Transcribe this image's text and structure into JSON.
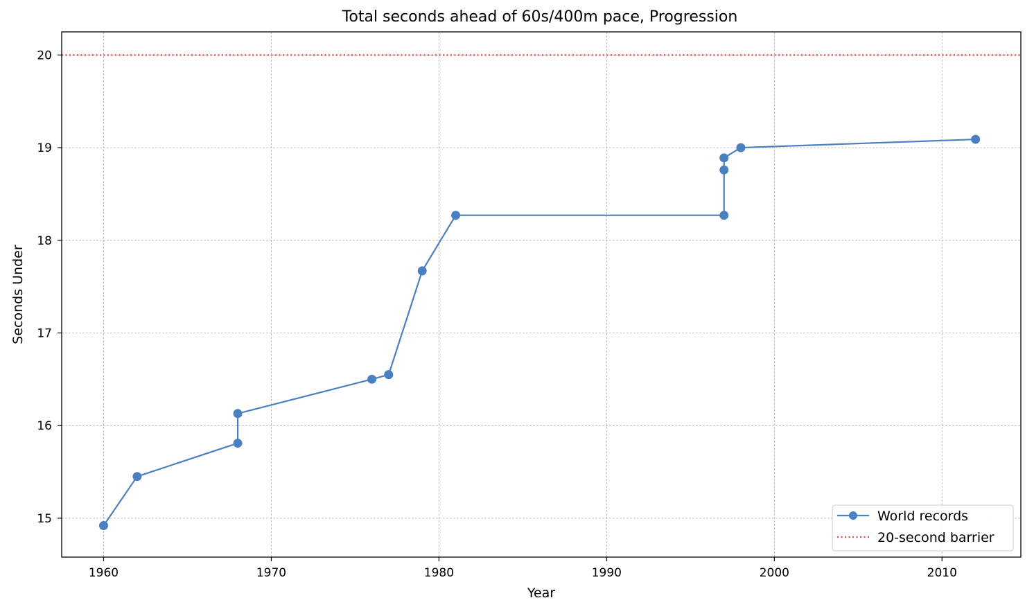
{
  "chart_data": {
    "type": "line",
    "title": "Total seconds ahead of 60s/400m pace, Progression",
    "xlabel": "Year",
    "ylabel": "Seconds Under",
    "xlim": [
      1957.5,
      2014.7
    ],
    "ylim": [
      14.58,
      20.25
    ],
    "x_ticks": [
      1960,
      1970,
      1980,
      1990,
      2000,
      2010
    ],
    "y_ticks": [
      15,
      16,
      17,
      18,
      19,
      20
    ],
    "grid": true,
    "legend_position": "lower-right",
    "series": [
      {
        "name": "World records",
        "color": "#4a7fc0",
        "marker": "circle",
        "x": [
          1960,
          1962,
          1968,
          1968,
          1976,
          1977,
          1979,
          1981,
          1997,
          1997,
          1997,
          1998,
          2012
        ],
        "y": [
          14.92,
          15.45,
          15.81,
          16.13,
          16.5,
          16.55,
          17.67,
          18.27,
          18.27,
          18.76,
          18.89,
          19.0,
          19.09
        ]
      }
    ],
    "reference_lines": [
      {
        "name": "20-second barrier",
        "y": 20,
        "color": "#f44336",
        "style": "dotted"
      }
    ]
  }
}
